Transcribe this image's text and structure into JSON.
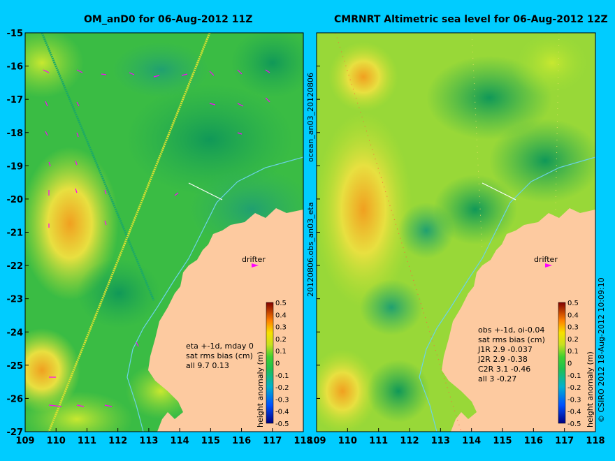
{
  "colors": {
    "background": "#00ccff",
    "land": "#fdcaa0",
    "sea_base": "#2cb84a",
    "coast_line": "#6bd3e8",
    "drifter": "#ff00ff"
  },
  "left_panel": {
    "title": "OM_anD0 for 06-Aug-2012 11Z",
    "stats_lines": [
      "eta +-1d, mday 0",
      "sat rms bias (cm)",
      "all 9.7 0.13"
    ],
    "drifter_label": "drifter"
  },
  "right_panel": {
    "title": "CMRNRT Altimetric sea level  for 06-Aug-2012 12Z",
    "stats_lines": [
      "obs +-1d, oi-0.04",
      "sat rms bias (cm)",
      "J1R   2.9 -0.037",
      "J2R   2.9 -0.38",
      "C2R   3.1 -0.46",
      "all 3 -0.27"
    ],
    "drifter_label": "drifter"
  },
  "axes": {
    "x_ticks": [
      "109",
      "110",
      "111",
      "112",
      "113",
      "114",
      "115",
      "116",
      "117",
      "118"
    ],
    "y_ticks": [
      "-15",
      "-16",
      "-17",
      "-18",
      "-19",
      "-20",
      "-21",
      "-22",
      "-23",
      "-24",
      "-25",
      "-26",
      "-27"
    ],
    "lon_range": [
      109,
      118
    ],
    "lat_range": [
      -27,
      -15
    ]
  },
  "colorbar": {
    "label": "height anomaly (m)",
    "ticks": [
      "0.5",
      "0.4",
      "0.3",
      "0.2",
      "0.1",
      "0",
      "-0.1",
      "-0.2",
      "-0.3",
      "-0.4",
      "-0.5"
    ],
    "range": [
      -0.5,
      0.5
    ]
  },
  "side_text": {
    "middle": "20120806.obs_an03_eta",
    "middle_top": "ocean_an03_20120806",
    "right": "© CSIRO 2012   18-Aug-2012 10:09:10"
  }
}
